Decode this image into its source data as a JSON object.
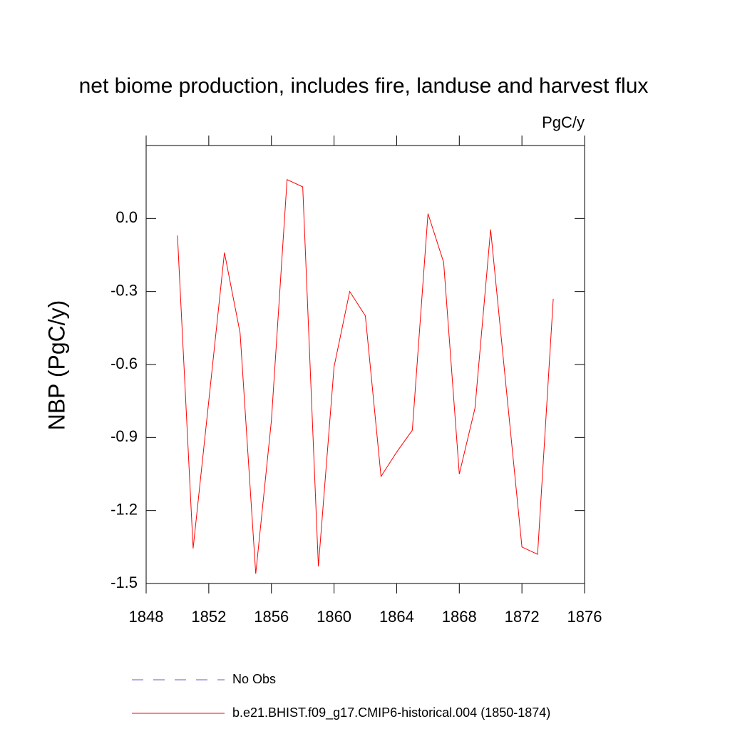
{
  "chart_data": {
    "type": "line",
    "title": "net biome production, includes fire, landuse and harvest flux",
    "units": "PgC/y",
    "y_label": "NBP  (PgC/y)",
    "x": [
      1850,
      1851,
      1852,
      1853,
      1854,
      1855,
      1856,
      1857,
      1858,
      1859,
      1860,
      1861,
      1862,
      1863,
      1864,
      1865,
      1866,
      1867,
      1868,
      1869,
      1870,
      1871,
      1872,
      1873,
      1874
    ],
    "series": [
      {
        "name": "b.e21.BHIST.f09_g17.CMIP6-historical.004 (1850-1874)",
        "color": "#ff0000",
        "values": [
          -0.07,
          -1.356,
          -0.75,
          -0.14,
          -0.47,
          -1.46,
          -0.83,
          0.16,
          0.13,
          -1.43,
          -0.61,
          -0.3,
          -0.4,
          -1.06,
          -0.96,
          -0.87,
          0.02,
          -0.18,
          -1.05,
          -0.78,
          -0.045,
          -0.7,
          -1.35,
          -1.38,
          -0.33
        ]
      }
    ],
    "legend_only": [
      {
        "name": "No Obs",
        "color": "#6a5acd",
        "dashed": true
      }
    ],
    "xlim": [
      1848,
      1876
    ],
    "xticks": [
      1848,
      1852,
      1856,
      1860,
      1864,
      1868,
      1872,
      1876
    ],
    "ylim": [
      -1.5,
      0.3
    ],
    "yticks": [
      {
        "value": -1.5,
        "label": "-1.5"
      },
      {
        "value": -1.2,
        "label": "-1.2"
      },
      {
        "value": -0.9,
        "label": "-0.9"
      },
      {
        "value": -0.6,
        "label": "-0.6"
      },
      {
        "value": -0.3,
        "label": "-0.3"
      },
      {
        "value": 0,
        "label": "0.0"
      }
    ],
    "grid": false
  }
}
